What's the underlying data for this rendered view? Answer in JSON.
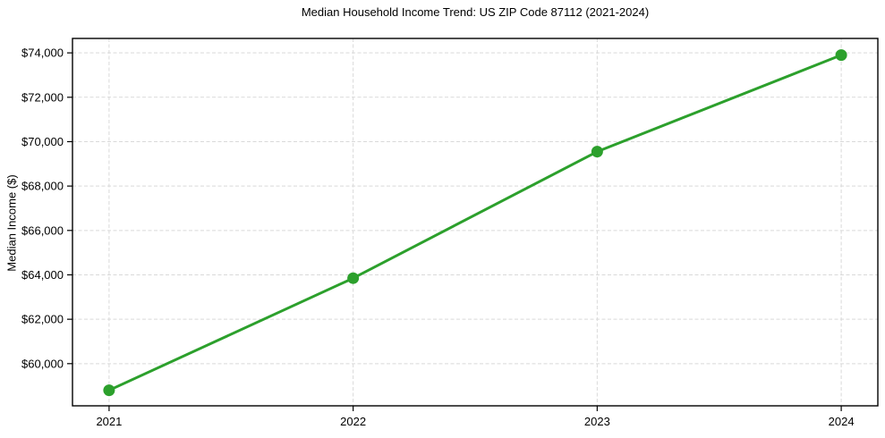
{
  "chart_data": {
    "type": "line",
    "title": "Median Household Income Trend: US ZIP Code 87112 (2021-2024)",
    "xlabel": "",
    "ylabel": "Median Income ($)",
    "x": [
      2021,
      2022,
      2023,
      2024
    ],
    "series": [
      {
        "name": "Median Household Income",
        "values": [
          58800,
          63850,
          69550,
          73900
        ]
      }
    ],
    "xticks": [
      2021,
      2022,
      2023,
      2024
    ],
    "xtick_labels": [
      "2021",
      "2022",
      "2023",
      "2024"
    ],
    "yticks": [
      60000,
      62000,
      64000,
      66000,
      68000,
      70000,
      72000,
      74000
    ],
    "ytick_labels": [
      "$60,000",
      "$62,000",
      "$64,000",
      "$66,000",
      "$68,000",
      "$70,000",
      "$72,000",
      "$74,000"
    ],
    "xlim": [
      2020.85,
      2024.15
    ],
    "ylim": [
      58100,
      74650
    ],
    "grid": true,
    "grid_style": "dashed",
    "legend": "none",
    "line_color": "#2ca02c",
    "marker": "circle",
    "background_color": "#ffffff",
    "axes_color": "#000000",
    "grid_color": "#d9d9d9"
  }
}
